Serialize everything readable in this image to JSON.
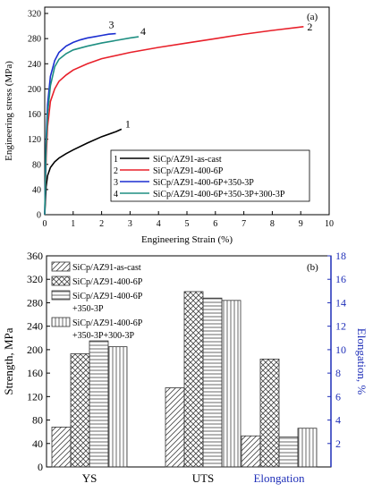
{
  "colors": {
    "red": "#e8202a",
    "black": "#000000",
    "blue": "#1c2fd1",
    "teal": "#1f8f82",
    "axis_blue": "#1f2fb8"
  },
  "chart_data": [
    {
      "type": "line",
      "panel_label": "(a)",
      "xlabel": "Engineering Strain (%)",
      "ylabel": "Engineering stress (MPa)",
      "xlim": [
        0,
        10
      ],
      "ylim": [
        0,
        330
      ],
      "xticks": [
        "0",
        "1",
        "2",
        "3",
        "4",
        "5",
        "6",
        "7",
        "8",
        "9",
        "10"
      ],
      "yticks": [
        "0",
        "40",
        "80",
        "120",
        "160",
        "200",
        "240",
        "280",
        "320"
      ],
      "grid": false,
      "legend_position": "bottom-right",
      "series": [
        {
          "id": "1",
          "name": "SiCp/AZ91-as-cast",
          "color": "#000000",
          "x": [
            0,
            0.05,
            0.1,
            0.2,
            0.35,
            0.5,
            0.75,
            1.0,
            1.5,
            2.0,
            2.5,
            2.7
          ],
          "y": [
            0,
            45,
            62,
            75,
            84,
            90,
            97,
            103,
            114,
            124,
            132,
            136
          ]
        },
        {
          "id": "2",
          "name": "SiCp/AZ91-400-6P",
          "color": "#e8202a",
          "x": [
            0,
            0.05,
            0.1,
            0.2,
            0.35,
            0.5,
            0.75,
            1.0,
            1.5,
            2.0,
            3.0,
            4.0,
            5.0,
            6.0,
            7.0,
            8.0,
            9.1
          ],
          "y": [
            0,
            90,
            140,
            180,
            200,
            212,
            222,
            230,
            240,
            248,
            258,
            266,
            273,
            280,
            287,
            293,
            299
          ]
        },
        {
          "id": "3",
          "name": "SiCp/AZ91-400-6P+350-3P",
          "color": "#1c2fd1",
          "x": [
            0,
            0.05,
            0.1,
            0.2,
            0.35,
            0.5,
            0.75,
            1.0,
            1.25,
            1.5,
            1.75,
            2.0,
            2.25,
            2.5
          ],
          "y": [
            0,
            120,
            175,
            220,
            245,
            258,
            268,
            274,
            278,
            281,
            283,
            285,
            287,
            288
          ]
        },
        {
          "id": "4",
          "name": "SiCp/AZ91-400-6P+350-3P+300-3P",
          "color": "#1f8f82",
          "x": [
            0,
            0.05,
            0.1,
            0.2,
            0.35,
            0.5,
            0.75,
            1.0,
            1.5,
            2.0,
            2.5,
            3.0,
            3.3
          ],
          "y": [
            0,
            110,
            160,
            205,
            235,
            247,
            256,
            262,
            268,
            273,
            277,
            281,
            283
          ]
        }
      ]
    },
    {
      "type": "bar",
      "panel_label": "(b)",
      "categories": [
        "YS",
        "UTS",
        "Elongation"
      ],
      "ylabel": "Strength, MPa",
      "y2label": "Elongation, %",
      "ylim": [
        0,
        360
      ],
      "y2lim": [
        0,
        18
      ],
      "yticks": [
        "0",
        "40",
        "80",
        "120",
        "160",
        "200",
        "240",
        "280",
        "320",
        "360"
      ],
      "y2ticks": [
        "2",
        "4",
        "6",
        "8",
        "10",
        "12",
        "14",
        "16",
        "18"
      ],
      "legend_position": "top-left",
      "series": [
        {
          "name": "SiCp/AZ91-as-cast",
          "pattern": "diagonal",
          "values": [
            68,
            135,
            53
          ]
        },
        {
          "name": "SiCp/AZ91-400-6P",
          "pattern": "crosshatch",
          "values": [
            193,
            299,
            184
          ]
        },
        {
          "name": "SiCp/AZ91-400-6P +350-3P",
          "pattern": "horizontal",
          "values": [
            215,
            288,
            51
          ]
        },
        {
          "name": "SiCp/AZ91-400-6P +350-3P+300-3P",
          "pattern": "vertical",
          "values": [
            205,
            284,
            66
          ]
        }
      ],
      "legend_lines": [
        [
          "SiCp/AZ91-as-cast"
        ],
        [
          "SiCp/AZ91-400-6P"
        ],
        [
          "SiCp/AZ91-400-6P",
          "+350-3P"
        ],
        [
          "SiCp/AZ91-400-6P",
          "+350-3P+300-3P"
        ]
      ]
    }
  ]
}
